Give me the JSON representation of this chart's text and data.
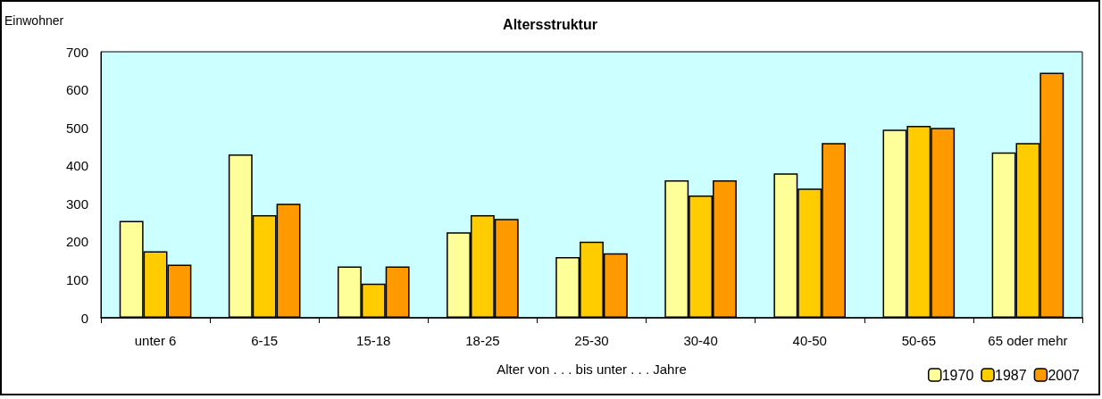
{
  "chart_data": {
    "type": "bar",
    "title": "Altersstruktur",
    "xlabel": "Alter von . . . bis unter . . . Jahre",
    "ylabel": "Einwohner",
    "categories": [
      "unter 6",
      "6-15",
      "15-18",
      "18-25",
      "25-30",
      "30-40",
      "40-50",
      "50-65",
      "65 oder mehr"
    ],
    "series": [
      {
        "name": "1970",
        "color": "#ffff99",
        "values": [
          255,
          430,
          135,
          225,
          160,
          362,
          380,
          495,
          435
        ]
      },
      {
        "name": "1987",
        "color": "#ffcc00",
        "values": [
          175,
          270,
          90,
          270,
          200,
          322,
          340,
          505,
          460
        ]
      },
      {
        "name": "2007",
        "color": "#ff9900",
        "values": [
          140,
          300,
          135,
          260,
          170,
          362,
          460,
          500,
          645
        ]
      }
    ],
    "ylim": [
      0,
      700
    ],
    "yticks": [
      0,
      100,
      200,
      300,
      400,
      500,
      600,
      700
    ],
    "grid": false,
    "legend": "bottom right"
  }
}
